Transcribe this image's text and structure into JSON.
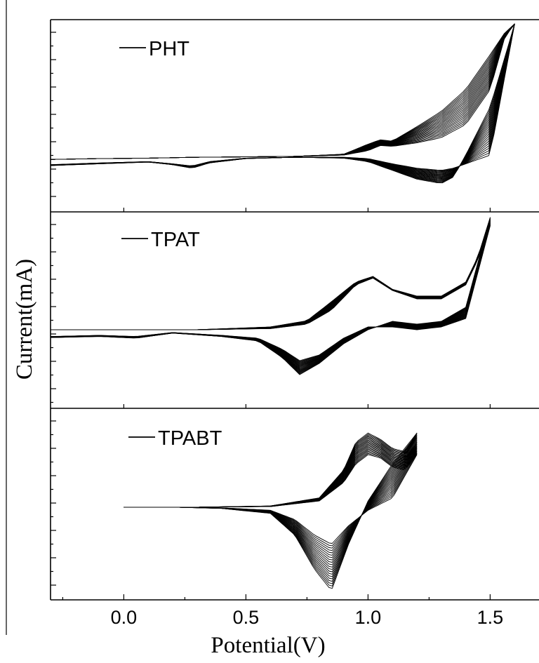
{
  "chart_data": {
    "type": "line",
    "chart_kind": "cyclic voltammograms (repeated scans), three stacked panels",
    "xlabel": "Potential(V)",
    "ylabel": "Current(mA)",
    "xlim": [
      -0.3,
      1.7
    ],
    "x_ticks": [
      "0.0",
      "0.5",
      "1.0",
      "1.5"
    ],
    "x_tick_values": [
      0.0,
      0.5,
      1.0,
      1.5
    ],
    "y_ticks_labeled": false,
    "shared_x_axis": true,
    "grid": false,
    "panels": [
      {
        "legend": "PHT",
        "scan_count": 20,
        "ylim": [
          -1.2,
          3.2
        ],
        "scan_start_v": -0.3,
        "scan_vertex_v": 1.6,
        "series": [
          {
            "role": "forward sweep, first scan",
            "x": [
              -0.3,
              -0.1,
              0.1,
              0.3,
              0.5,
              0.7,
              0.9,
              1.0,
              1.05,
              1.1,
              1.2,
              1.3,
              1.4,
              1.5,
              1.56,
              1.6
            ],
            "y": [
              0.0,
              0.02,
              0.03,
              0.05,
              0.06,
              0.07,
              0.1,
              0.2,
              0.32,
              0.3,
              0.38,
              0.5,
              0.8,
              1.6,
              2.8,
              3.1
            ]
          },
          {
            "role": "forward sweep, last scan",
            "x": [
              -0.3,
              -0.1,
              0.1,
              0.3,
              0.5,
              0.7,
              0.9,
              1.0,
              1.05,
              1.1,
              1.2,
              1.3,
              1.4,
              1.5,
              1.56,
              1.6
            ],
            "y": [
              0.0,
              0.02,
              0.03,
              0.05,
              0.06,
              0.07,
              0.12,
              0.35,
              0.45,
              0.42,
              0.75,
              1.1,
              1.6,
              2.4,
              2.9,
              3.1
            ]
          },
          {
            "role": "reverse sweep, first scan",
            "x": [
              1.6,
              1.5,
              1.4,
              1.35,
              1.3,
              1.2,
              1.1,
              1.0,
              0.9,
              0.7,
              0.5,
              0.35,
              0.28,
              0.2,
              0.1,
              -0.1,
              -0.3
            ],
            "y": [
              3.1,
              0.1,
              -0.1,
              -0.2,
              -0.25,
              -0.2,
              -0.1,
              0.02,
              0.05,
              0.05,
              0.03,
              -0.05,
              -0.15,
              -0.1,
              -0.05,
              -0.08,
              -0.12
            ]
          },
          {
            "role": "reverse sweep, last scan",
            "x": [
              1.6,
              1.5,
              1.4,
              1.35,
              1.3,
              1.2,
              1.1,
              1.0,
              0.9,
              0.7,
              0.5,
              0.35,
              0.28,
              0.2,
              0.1,
              -0.1,
              -0.3
            ],
            "y": [
              3.1,
              1.2,
              0.1,
              -0.4,
              -0.55,
              -0.45,
              -0.25,
              -0.05,
              0.03,
              0.05,
              0.02,
              -0.08,
              -0.2,
              -0.12,
              -0.06,
              -0.1,
              -0.14
            ]
          }
        ]
      },
      {
        "legend": "TPAT",
        "scan_count": 20,
        "ylim": [
          -1.4,
          2.1
        ],
        "scan_start_v": -0.3,
        "scan_vertex_v": 1.5,
        "series": [
          {
            "role": "forward sweep, first scan",
            "x": [
              -0.3,
              0.0,
              0.3,
              0.6,
              0.75,
              0.85,
              0.95,
              1.02,
              1.1,
              1.2,
              1.3,
              1.4,
              1.45,
              1.5
            ],
            "y": [
              0.0,
              0.0,
              0.0,
              0.02,
              0.1,
              0.35,
              0.8,
              0.92,
              0.7,
              0.55,
              0.55,
              0.8,
              1.25,
              1.85
            ]
          },
          {
            "role": "forward sweep, last scan",
            "x": [
              -0.3,
              0.0,
              0.3,
              0.6,
              0.75,
              0.85,
              0.95,
              1.02,
              1.1,
              1.2,
              1.3,
              1.4,
              1.45,
              1.5
            ],
            "y": [
              0.0,
              0.0,
              0.0,
              0.05,
              0.16,
              0.5,
              0.85,
              0.95,
              0.72,
              0.6,
              0.6,
              0.85,
              1.3,
              2.0
            ]
          },
          {
            "role": "reverse sweep, first scan",
            "x": [
              1.5,
              1.4,
              1.3,
              1.2,
              1.1,
              1.0,
              0.9,
              0.8,
              0.72,
              0.65,
              0.55,
              0.4,
              0.2,
              0.05,
              -0.1,
              -0.3
            ],
            "y": [
              1.85,
              0.2,
              0.05,
              0.0,
              0.05,
              0.05,
              -0.15,
              -0.45,
              -0.55,
              -0.35,
              -0.15,
              -0.1,
              -0.05,
              -0.12,
              -0.1,
              -0.12
            ]
          },
          {
            "role": "reverse sweep, last scan",
            "x": [
              1.5,
              1.4,
              1.3,
              1.2,
              1.1,
              1.0,
              0.9,
              0.8,
              0.72,
              0.65,
              0.55,
              0.4,
              0.2,
              0.05,
              -0.1,
              -0.3
            ],
            "y": [
              2.0,
              0.4,
              0.15,
              0.1,
              0.15,
              0.0,
              -0.25,
              -0.6,
              -0.8,
              -0.5,
              -0.2,
              -0.12,
              -0.06,
              -0.15,
              -0.12,
              -0.14
            ]
          }
        ]
      },
      {
        "legend": "TPABT",
        "scan_count": 20,
        "ylim": [
          -1.5,
          1.6
        ],
        "scan_start_v": 0.0,
        "scan_vertex_v": 1.2,
        "series": [
          {
            "role": "forward sweep, first scan",
            "x": [
              0.0,
              0.3,
              0.6,
              0.8,
              0.9,
              0.95,
              1.0,
              1.05,
              1.1,
              1.15,
              1.2
            ],
            "y": [
              0.0,
              0.0,
              0.01,
              0.1,
              0.4,
              0.7,
              0.85,
              0.8,
              0.65,
              0.6,
              0.85
            ]
          },
          {
            "role": "forward sweep, last scan",
            "x": [
              0.0,
              0.3,
              0.6,
              0.8,
              0.9,
              0.95,
              1.0,
              1.05,
              1.1,
              1.15,
              1.2
            ],
            "y": [
              0.0,
              0.0,
              0.02,
              0.15,
              0.6,
              1.05,
              1.2,
              1.1,
              0.95,
              0.9,
              1.2
            ]
          },
          {
            "role": "reverse sweep, first scan",
            "x": [
              1.2,
              1.1,
              1.0,
              0.92,
              0.85,
              0.78,
              0.7,
              0.6,
              0.4,
              0.2,
              0.0
            ],
            "y": [
              0.85,
              0.15,
              -0.05,
              -0.3,
              -0.6,
              -0.45,
              -0.2,
              -0.05,
              -0.01,
              0.0,
              0.0
            ]
          },
          {
            "role": "reverse sweep, last scan",
            "x": [
              1.2,
              1.1,
              1.0,
              0.92,
              0.85,
              0.78,
              0.7,
              0.6,
              0.4,
              0.2,
              0.0
            ],
            "y": [
              1.2,
              0.7,
              0.1,
              -0.6,
              -1.35,
              -1.0,
              -0.45,
              -0.1,
              -0.02,
              0.0,
              0.0
            ]
          }
        ]
      }
    ]
  }
}
